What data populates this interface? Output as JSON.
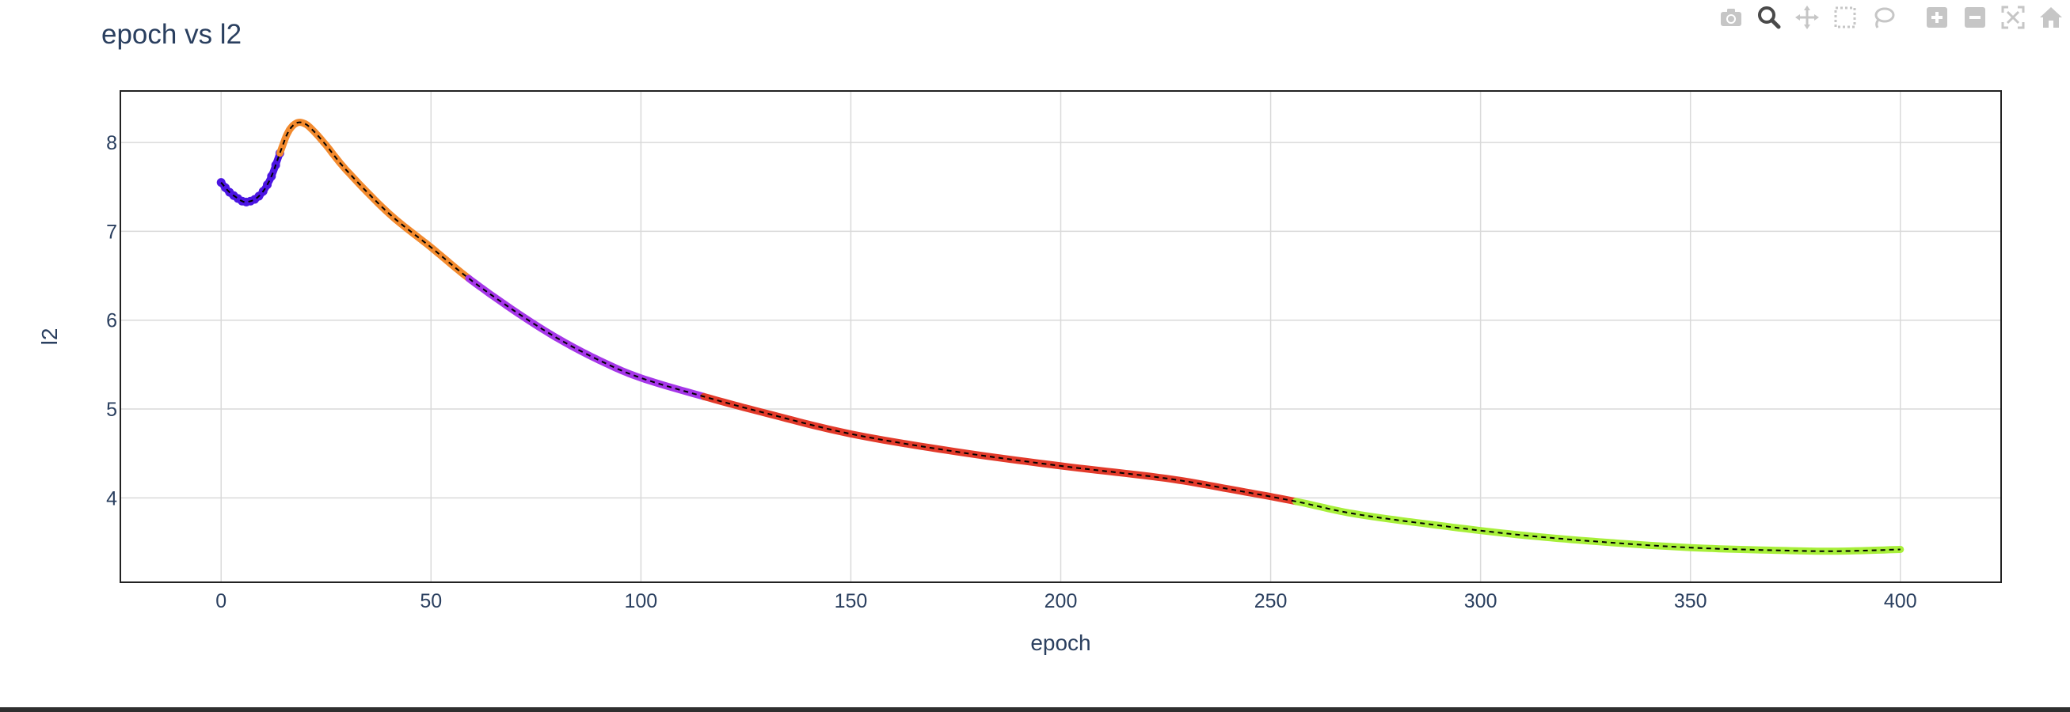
{
  "modebar": {
    "buttons": [
      {
        "name": "camera-icon",
        "active": false
      },
      {
        "name": "zoom-icon",
        "active": true
      },
      {
        "name": "pan-icon",
        "active": false
      },
      {
        "name": "box-select-icon",
        "active": false
      },
      {
        "name": "lasso-select-icon",
        "active": false
      },
      {
        "name": "zoom-in-icon",
        "active": false
      },
      {
        "name": "zoom-out-icon",
        "active": false
      },
      {
        "name": "autoscale-icon",
        "active": false
      },
      {
        "name": "reset-axes-icon",
        "active": false
      }
    ]
  },
  "chart_data": {
    "type": "line",
    "title": "epoch vs l2",
    "xlabel": "epoch",
    "ylabel": "l2",
    "xlim": [
      -24,
      424
    ],
    "ylim": [
      3.05,
      8.58
    ],
    "xticks": [
      0,
      50,
      100,
      150,
      200,
      250,
      300,
      350,
      400
    ],
    "yticks": [
      4,
      5,
      6,
      7,
      8
    ],
    "grid": true,
    "legend": "none",
    "overlay_line": {
      "color": "#000000",
      "style": "dashed"
    },
    "curve_points": [
      [
        0,
        7.55
      ],
      [
        2,
        7.44
      ],
      [
        4,
        7.37
      ],
      [
        5,
        7.34
      ],
      [
        6,
        7.33
      ],
      [
        8,
        7.36
      ],
      [
        10,
        7.45
      ],
      [
        12,
        7.62
      ],
      [
        14,
        7.88
      ],
      [
        16,
        8.12
      ],
      [
        18,
        8.22
      ],
      [
        20,
        8.21
      ],
      [
        22,
        8.13
      ],
      [
        25,
        7.97
      ],
      [
        30,
        7.68
      ],
      [
        40,
        7.2
      ],
      [
        50,
        6.82
      ],
      [
        59,
        6.47
      ],
      [
        70,
        6.1
      ],
      [
        80,
        5.8
      ],
      [
        90,
        5.55
      ],
      [
        100,
        5.35
      ],
      [
        115,
        5.14
      ],
      [
        130,
        4.95
      ],
      [
        150,
        4.72
      ],
      [
        175,
        4.52
      ],
      [
        200,
        4.36
      ],
      [
        225,
        4.22
      ],
      [
        240,
        4.1
      ],
      [
        256,
        3.96
      ],
      [
        270,
        3.82
      ],
      [
        290,
        3.69
      ],
      [
        310,
        3.58
      ],
      [
        330,
        3.5
      ],
      [
        350,
        3.44
      ],
      [
        370,
        3.41
      ],
      [
        385,
        3.4
      ],
      [
        400,
        3.42
      ]
    ],
    "segments": [
      {
        "x_start": 0,
        "x_end": 14,
        "color": "#4b15e2",
        "marker": "circle"
      },
      {
        "x_start": 14,
        "x_end": 59,
        "color": "#f28a2e",
        "marker": "none"
      },
      {
        "x_start": 59,
        "x_end": 115,
        "color": "#a536e8",
        "marker": "none"
      },
      {
        "x_start": 115,
        "x_end": 256,
        "color": "#e23a2a",
        "marker": "none"
      },
      {
        "x_start": 256,
        "x_end": 400,
        "color": "#a8ef3a",
        "marker": "none"
      }
    ]
  }
}
